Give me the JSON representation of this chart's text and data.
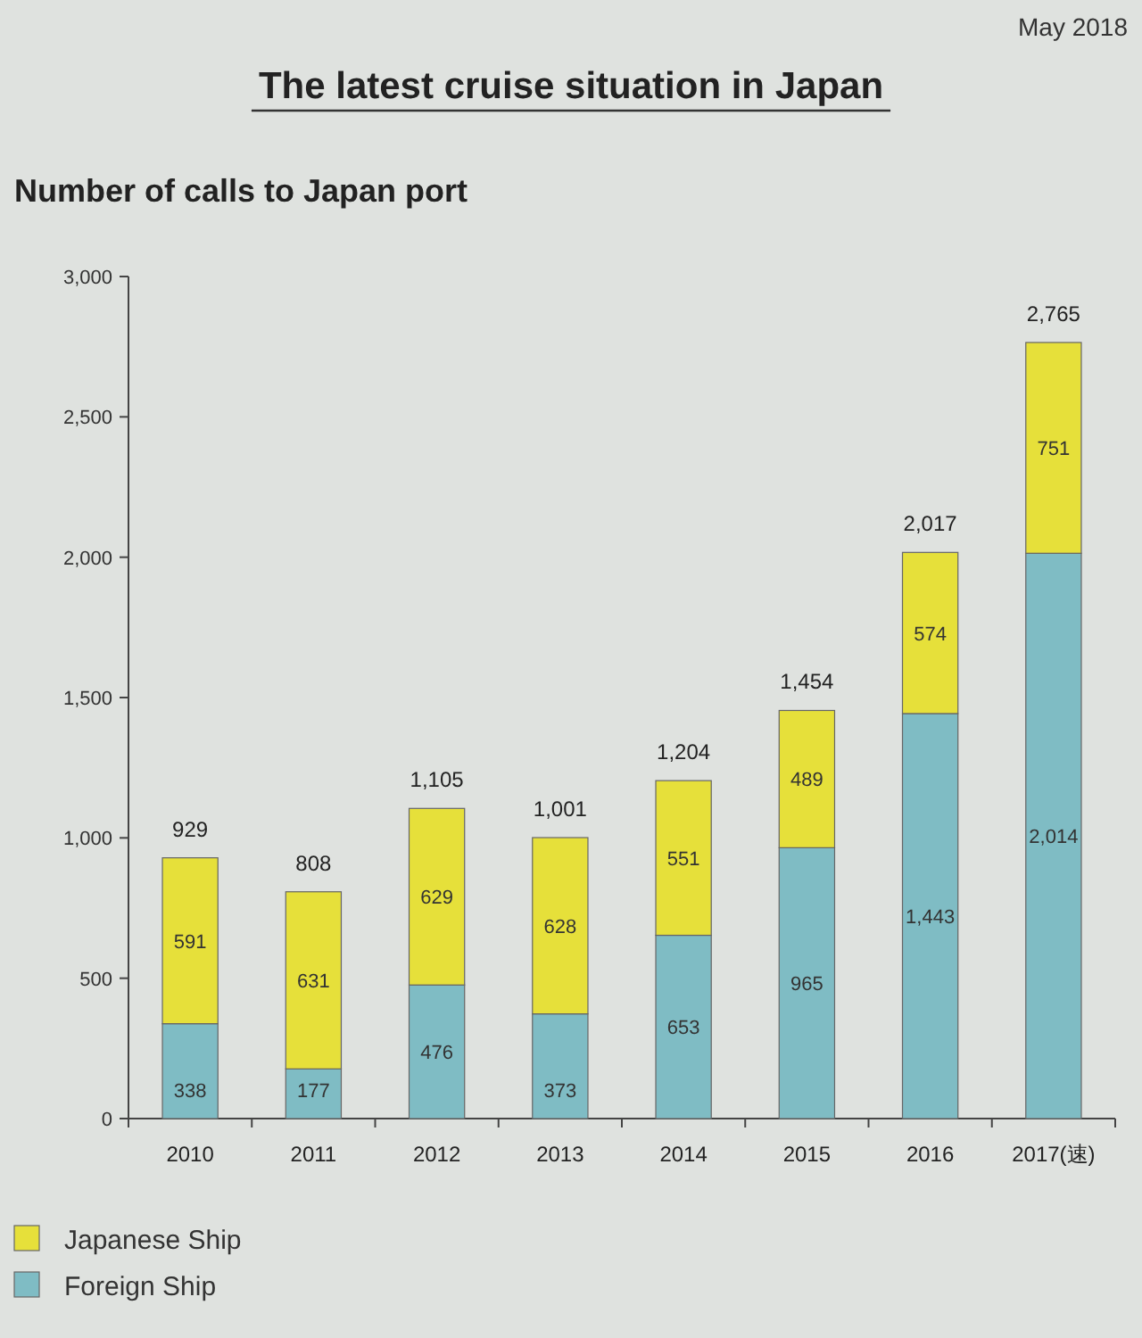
{
  "chart_data": {
    "type": "bar",
    "title": "The latest cruise situation in Japan",
    "subtitle": "Number of calls to Japan port",
    "annotations": [
      "May 2018"
    ],
    "categories": [
      "2010",
      "2011",
      "2012",
      "2013",
      "2014",
      "2015",
      "2016",
      "2017(速)"
    ],
    "stacked": true,
    "series": [
      {
        "name": "Foreign Ship",
        "color": "#7fbcc4",
        "values": [
          338,
          177,
          476,
          373,
          653,
          965,
          1443,
          2014
        ],
        "value_labels": [
          "338",
          "177",
          "476",
          "373",
          "653",
          "965",
          "1,443",
          "2,014"
        ]
      },
      {
        "name": "Japanese Ship",
        "color": "#e6e03a",
        "values": [
          591,
          631,
          629,
          628,
          551,
          489,
          574,
          751
        ],
        "value_labels": [
          "591",
          "631",
          "629",
          "628",
          "551",
          "489",
          "574",
          "751"
        ]
      }
    ],
    "totals": [
      "929",
      "808",
      "1,105",
      "1,001",
      "1,204",
      "1,454",
      "2,017",
      "2,765"
    ],
    "ylim": [
      0,
      3000
    ],
    "yticks": [
      0,
      {
        "value": 500,
        "label": "500"
      },
      {
        "value": 1000,
        "label": "1,000"
      },
      {
        "value": 1500,
        "label": "1,500"
      },
      {
        "value": 2000,
        "label": "2,000"
      },
      {
        "value": 2500,
        "label": "2,500"
      },
      {
        "value": 3000,
        "label": "3,000"
      }
    ],
    "grid": false,
    "legend": "bottom left"
  }
}
